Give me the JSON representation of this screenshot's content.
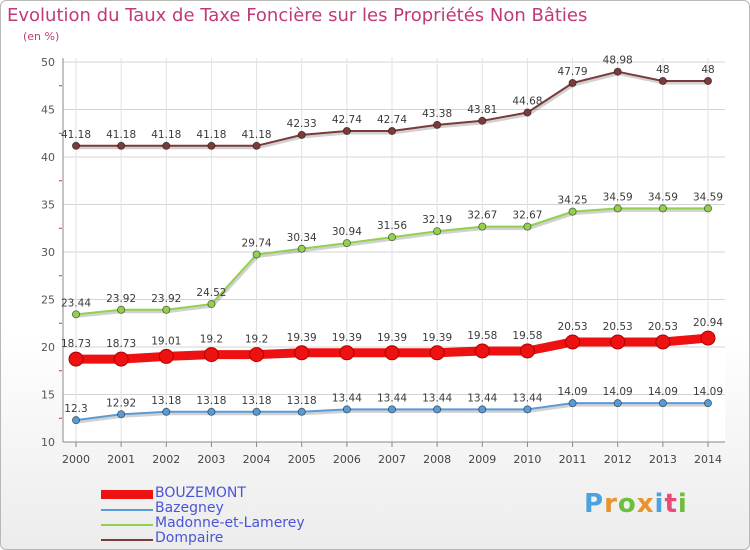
{
  "header": {
    "title": "Evolution du Taux de Taxe Foncière sur les Propriétés Non Bâties",
    "unit": "(en %)"
  },
  "logo": {
    "text": "Proxiti",
    "letter_colors": [
      "#4aa3df",
      "#e8932b",
      "#6bbf3a",
      "#e8932b",
      "#4aa3df",
      "#e84b7a",
      "#6bbf3a"
    ]
  },
  "chart_data": {
    "type": "line",
    "title": "Evolution du Taux de Taxe Foncière sur les Propriétés Non Bâties",
    "ylabel": "(en %)",
    "ylim": [
      10,
      50
    ],
    "yticks": [
      10,
      15,
      20,
      25,
      30,
      35,
      40,
      45,
      50
    ],
    "grid": true,
    "legend_position": "bottom-left",
    "x": [
      "2000",
      "2001",
      "2002",
      "2003",
      "2004",
      "2005",
      "2006",
      "2007",
      "2008",
      "2009",
      "2010",
      "2011",
      "2012",
      "2013",
      "2014"
    ],
    "series": [
      {
        "name": "BOUZEMONT",
        "color": "#ee1111",
        "emphasis": true,
        "values": [
          18.73,
          18.73,
          19.01,
          19.2,
          19.2,
          19.39,
          19.39,
          19.39,
          19.39,
          19.58,
          19.58,
          20.53,
          20.53,
          20.53,
          20.94
        ],
        "labels": [
          "18.73",
          "18.73",
          "19.01",
          "19.2",
          "19.2",
          "19.39",
          "19.39",
          "19.39",
          "19.39",
          "19.58",
          "19.58",
          "20.53",
          "20.53",
          "20.53",
          "20.94"
        ]
      },
      {
        "name": "Bazegney",
        "color": "#5b9bd5",
        "values": [
          12.3,
          12.92,
          13.18,
          13.18,
          13.18,
          13.18,
          13.44,
          13.44,
          13.44,
          13.44,
          13.44,
          14.09,
          14.09,
          14.09,
          14.09
        ],
        "labels": [
          "12.3",
          "12.92",
          "13.18",
          "13.18",
          "13.18",
          "13.18",
          "13.44",
          "13.44",
          "13.44",
          "13.44",
          "13.44",
          "14.09",
          "14.09",
          "14.09",
          "14.09"
        ]
      },
      {
        "name": "Madonne-et-Lamerey",
        "color": "#92d050",
        "values": [
          23.44,
          23.92,
          23.92,
          24.52,
          29.74,
          30.34,
          30.94,
          31.56,
          32.19,
          32.67,
          32.67,
          34.25,
          34.59,
          34.59,
          34.59
        ],
        "labels": [
          "23.44",
          "23.92",
          "23.92",
          "24.52",
          "29.74",
          "30.34",
          "30.94",
          "31.56",
          "32.19",
          "32.67",
          "32.67",
          "34.25",
          "34.59",
          "34.59",
          "34.59"
        ]
      },
      {
        "name": "Dompaire",
        "color": "#7b3b3b",
        "values": [
          41.18,
          41.18,
          41.18,
          41.18,
          41.18,
          42.33,
          42.74,
          42.74,
          43.38,
          43.81,
          44.68,
          47.79,
          48.98,
          48.0,
          48.0
        ],
        "labels": [
          "41.18",
          "41.18",
          "41.18",
          "41.18",
          "41.18",
          "42.33",
          "42.74",
          "42.74",
          "43.38",
          "43.81",
          "44.68",
          "47.79",
          "48.98",
          "48",
          "48"
        ]
      }
    ]
  }
}
